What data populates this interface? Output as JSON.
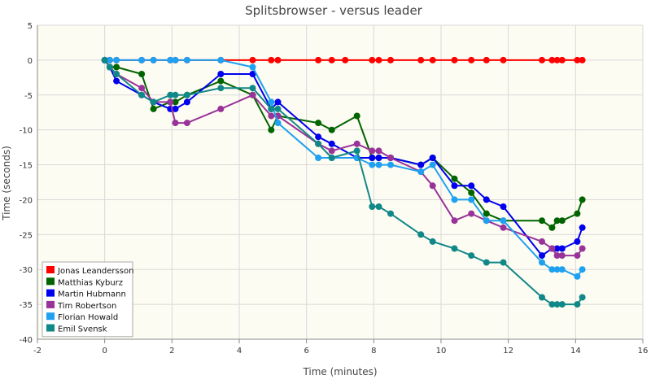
{
  "chart_data": {
    "type": "line",
    "title": "Splitsbrowser - versus leader",
    "xlabel": "Time (minutes)",
    "ylabel": "Time (seconds)",
    "xlim": [
      -2,
      16
    ],
    "ylim": [
      -40,
      5
    ],
    "xticks": [
      -2,
      0,
      2,
      4,
      6,
      8,
      10,
      12,
      14,
      16
    ],
    "yticks": [
      5,
      0,
      -5,
      -10,
      -15,
      -20,
      -25,
      -30,
      -35,
      -40
    ],
    "grid": true,
    "legend_position": "bottom-left",
    "plot_background": "#fdfcf2",
    "series": [
      {
        "name": "Jonas Leandersson",
        "color": "#ff0000",
        "points": [
          [
            0,
            0
          ],
          [
            0.15,
            0
          ],
          [
            0.35,
            0
          ],
          [
            1.1,
            0
          ],
          [
            1.45,
            0
          ],
          [
            1.95,
            0
          ],
          [
            2.1,
            0
          ],
          [
            2.45,
            0
          ],
          [
            3.45,
            0
          ],
          [
            4.4,
            0
          ],
          [
            4.95,
            0
          ],
          [
            5.15,
            0
          ],
          [
            6.35,
            0
          ],
          [
            6.75,
            0
          ],
          [
            7.15,
            0
          ],
          [
            7.95,
            0
          ],
          [
            8.15,
            0
          ],
          [
            8.5,
            0
          ],
          [
            9.4,
            0
          ],
          [
            9.75,
            0
          ],
          [
            10.4,
            0
          ],
          [
            10.9,
            0
          ],
          [
            11.35,
            0
          ],
          [
            11.85,
            0
          ],
          [
            13,
            0
          ],
          [
            13.3,
            0
          ],
          [
            13.45,
            0
          ],
          [
            13.6,
            0
          ],
          [
            14.05,
            0
          ],
          [
            14.2,
            0
          ]
        ]
      },
      {
        "name": "Matthias Kyburz",
        "color": "#006400",
        "points": [
          [
            0,
            0
          ],
          [
            0.15,
            -1
          ],
          [
            0.35,
            -1
          ],
          [
            1.1,
            -2
          ],
          [
            1.45,
            -7
          ],
          [
            1.95,
            -6
          ],
          [
            2.1,
            -6
          ],
          [
            2.45,
            -5
          ],
          [
            3.45,
            -3
          ],
          [
            4.4,
            -5
          ],
          [
            4.95,
            -10
          ],
          [
            5.15,
            -8
          ],
          [
            6.35,
            -9
          ],
          [
            6.75,
            -10
          ],
          [
            7.5,
            -8
          ],
          [
            7.95,
            -14
          ],
          [
            8.15,
            -14
          ],
          [
            8.5,
            -14
          ],
          [
            9.4,
            -15
          ],
          [
            9.75,
            -14
          ],
          [
            10.4,
            -17
          ],
          [
            10.9,
            -19
          ],
          [
            11.35,
            -22
          ],
          [
            11.85,
            -23
          ],
          [
            13,
            -23
          ],
          [
            13.3,
            -24
          ],
          [
            13.45,
            -23
          ],
          [
            13.6,
            -23
          ],
          [
            14.05,
            -22
          ],
          [
            14.2,
            -20
          ]
        ]
      },
      {
        "name": "Martin Hubmann",
        "color": "#0000ee",
        "points": [
          [
            0,
            0
          ],
          [
            0.15,
            -1
          ],
          [
            0.35,
            -3
          ],
          [
            1.1,
            -5
          ],
          [
            1.45,
            -6
          ],
          [
            1.95,
            -7
          ],
          [
            2.1,
            -7
          ],
          [
            2.45,
            -6
          ],
          [
            3.45,
            -2
          ],
          [
            4.4,
            -2
          ],
          [
            4.95,
            -7
          ],
          [
            5.15,
            -6
          ],
          [
            6.35,
            -11
          ],
          [
            6.75,
            -12
          ],
          [
            7.5,
            -14
          ],
          [
            7.95,
            -14
          ],
          [
            8.15,
            -14
          ],
          [
            8.5,
            -14
          ],
          [
            9.4,
            -15
          ],
          [
            9.75,
            -14
          ],
          [
            10.4,
            -18
          ],
          [
            10.9,
            -18
          ],
          [
            11.35,
            -20
          ],
          [
            11.85,
            -21
          ],
          [
            13,
            -28
          ],
          [
            13.3,
            -27
          ],
          [
            13.45,
            -27
          ],
          [
            13.6,
            -27
          ],
          [
            14.05,
            -26
          ],
          [
            14.2,
            -24
          ]
        ]
      },
      {
        "name": "Tim Robertson",
        "color": "#993399",
        "points": [
          [
            0,
            0
          ],
          [
            0.15,
            -1
          ],
          [
            0.35,
            -2
          ],
          [
            1.1,
            -4
          ],
          [
            1.45,
            -6
          ],
          [
            1.95,
            -6
          ],
          [
            2.1,
            -9
          ],
          [
            2.45,
            -9
          ],
          [
            3.45,
            -7
          ],
          [
            4.4,
            -5
          ],
          [
            4.95,
            -8
          ],
          [
            5.15,
            -8
          ],
          [
            6.35,
            -12
          ],
          [
            6.75,
            -13
          ],
          [
            7.5,
            -12
          ],
          [
            7.95,
            -13
          ],
          [
            8.15,
            -13
          ],
          [
            8.5,
            -14
          ],
          [
            9.4,
            -16
          ],
          [
            9.75,
            -18
          ],
          [
            10.4,
            -23
          ],
          [
            10.9,
            -22
          ],
          [
            11.35,
            -23
          ],
          [
            11.85,
            -24
          ],
          [
            13,
            -26
          ],
          [
            13.3,
            -27
          ],
          [
            13.45,
            -28
          ],
          [
            13.6,
            -28
          ],
          [
            14.05,
            -28
          ],
          [
            14.2,
            -27
          ]
        ]
      },
      {
        "name": "Florian Howald",
        "color": "#1fa0f0",
        "points": [
          [
            0,
            0
          ],
          [
            0.15,
            0
          ],
          [
            0.35,
            0
          ],
          [
            1.1,
            0
          ],
          [
            1.45,
            0
          ],
          [
            1.95,
            0
          ],
          [
            2.1,
            0
          ],
          [
            2.45,
            0
          ],
          [
            3.45,
            0
          ],
          [
            4.4,
            -1
          ],
          [
            4.95,
            -6
          ],
          [
            5.15,
            -9
          ],
          [
            6.35,
            -14
          ],
          [
            6.75,
            -14
          ],
          [
            7.5,
            -14
          ],
          [
            7.95,
            -15
          ],
          [
            8.15,
            -15
          ],
          [
            8.5,
            -15
          ],
          [
            9.4,
            -16
          ],
          [
            9.75,
            -15
          ],
          [
            10.4,
            -20
          ],
          [
            10.9,
            -20
          ],
          [
            11.35,
            -23
          ],
          [
            11.85,
            -23
          ],
          [
            13,
            -29
          ],
          [
            13.3,
            -30
          ],
          [
            13.45,
            -30
          ],
          [
            13.6,
            -30
          ],
          [
            14.05,
            -31
          ],
          [
            14.2,
            -30
          ]
        ]
      },
      {
        "name": "Emil Svensk",
        "color": "#118888",
        "points": [
          [
            0,
            0
          ],
          [
            0.15,
            -1
          ],
          [
            0.35,
            -2
          ],
          [
            1.1,
            -5
          ],
          [
            1.45,
            -6
          ],
          [
            1.95,
            -5
          ],
          [
            2.1,
            -5
          ],
          [
            2.45,
            -5
          ],
          [
            3.45,
            -4
          ],
          [
            4.4,
            -4
          ],
          [
            4.95,
            -7
          ],
          [
            5.15,
            -7
          ],
          [
            6.35,
            -12
          ],
          [
            6.75,
            -14
          ],
          [
            7.5,
            -13
          ],
          [
            7.95,
            -21
          ],
          [
            8.15,
            -21
          ],
          [
            8.5,
            -22
          ],
          [
            9.4,
            -25
          ],
          [
            9.75,
            -26
          ],
          [
            10.4,
            -27
          ],
          [
            10.9,
            -28
          ],
          [
            11.35,
            -29
          ],
          [
            11.85,
            -29
          ],
          [
            13,
            -34
          ],
          [
            13.3,
            -35
          ],
          [
            13.45,
            -35
          ],
          [
            13.6,
            -35
          ],
          [
            14.05,
            -35
          ],
          [
            14.2,
            -34
          ]
        ]
      }
    ]
  }
}
